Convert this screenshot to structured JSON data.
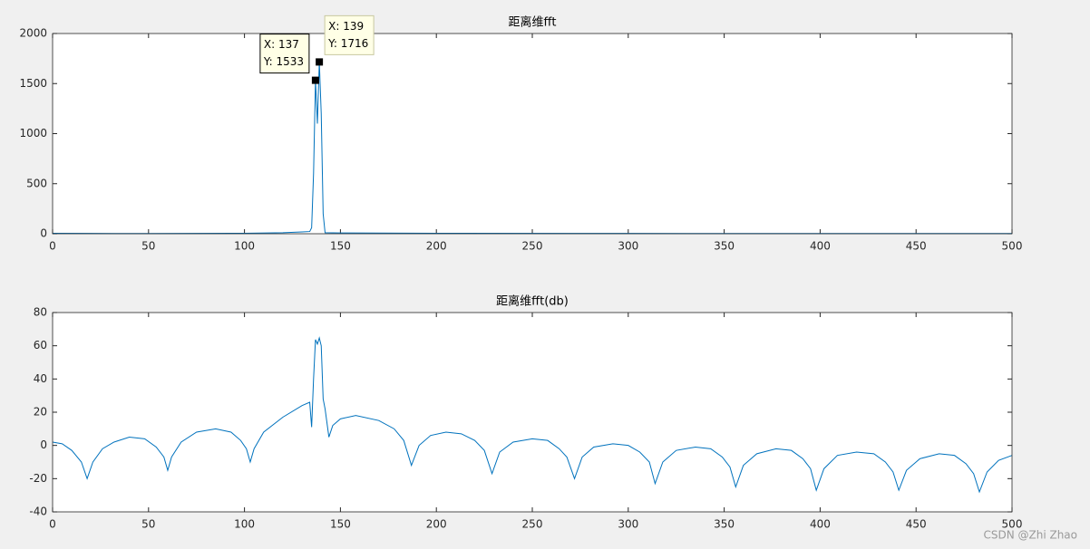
{
  "chart_data": [
    {
      "type": "line",
      "title": "距离维fft",
      "color": "#0072bd",
      "x": [
        0,
        20,
        50,
        100,
        120,
        130,
        134,
        135,
        136,
        137,
        138,
        139,
        140,
        141,
        142,
        150,
        200,
        300,
        400,
        500
      ],
      "values": [
        5,
        3,
        2,
        5,
        10,
        18,
        22,
        60,
        600,
        1533,
        1100,
        1716,
        1200,
        200,
        10,
        8,
        5,
        3,
        2,
        2
      ],
      "xlim": [
        0,
        500
      ],
      "xticks": [
        0,
        50,
        100,
        150,
        200,
        250,
        300,
        350,
        400,
        450,
        500
      ],
      "ylim": [
        0,
        2000
      ],
      "yticks": [
        0,
        500,
        1000,
        1500,
        2000
      ],
      "annotations": [
        {
          "x": 137,
          "y": 1533,
          "lines": [
            "X: 137",
            "Y: 1533"
          ]
        },
        {
          "x": 139,
          "y": 1716,
          "lines": [
            "X: 139",
            "Y: 1716"
          ]
        }
      ]
    },
    {
      "type": "line",
      "title": "距离维fft(db)",
      "color": "#0072bd",
      "x": [
        0,
        5,
        10,
        15,
        18,
        21,
        26,
        32,
        40,
        48,
        54,
        58,
        60,
        62,
        67,
        75,
        85,
        93,
        98,
        101,
        103,
        105,
        110,
        120,
        130,
        134,
        135,
        136,
        137,
        138,
        139,
        140,
        141,
        142,
        144,
        146,
        150,
        158,
        170,
        178,
        183,
        187,
        191,
        197,
        205,
        213,
        220,
        225,
        229,
        233,
        240,
        250,
        258,
        264,
        268,
        272,
        276,
        282,
        292,
        300,
        306,
        311,
        314,
        318,
        325,
        335,
        343,
        349,
        353,
        356,
        360,
        367,
        377,
        385,
        391,
        395,
        398,
        402,
        409,
        419,
        428,
        434,
        438,
        441,
        445,
        452,
        462,
        470,
        476,
        480,
        483,
        487,
        493,
        500
      ],
      "values": [
        2,
        1,
        -3,
        -10,
        -20,
        -10,
        -2,
        2,
        5,
        4,
        -1,
        -7,
        -15,
        -7,
        2,
        8,
        10,
        8,
        3,
        -2,
        -10,
        -2,
        8,
        17,
        24,
        26,
        11,
        40,
        63.7,
        61,
        64.7,
        60,
        28,
        22,
        5,
        12,
        16,
        18,
        15,
        10,
        3,
        -12,
        0,
        6,
        8,
        7,
        3,
        -3,
        -17,
        -4,
        2,
        4,
        3,
        -2,
        -7,
        -20,
        -7,
        -1,
        1,
        0,
        -4,
        -10,
        -23,
        -10,
        -3,
        -1,
        -2,
        -7,
        -13,
        -25,
        -12,
        -5,
        -2,
        -3,
        -8,
        -14,
        -27,
        -14,
        -6,
        -4,
        -5,
        -10,
        -16,
        -27,
        -15,
        -8,
        -5,
        -6,
        -11,
        -17,
        -28,
        -16,
        -9,
        -6
      ],
      "xlim": [
        0,
        500
      ],
      "xticks": [
        0,
        50,
        100,
        150,
        200,
        250,
        300,
        350,
        400,
        450,
        500
      ],
      "ylim": [
        -40,
        80
      ],
      "yticks": [
        -40,
        -20,
        0,
        20,
        40,
        60,
        80
      ]
    }
  ],
  "watermark": "CSDN @Zhi Zhao"
}
